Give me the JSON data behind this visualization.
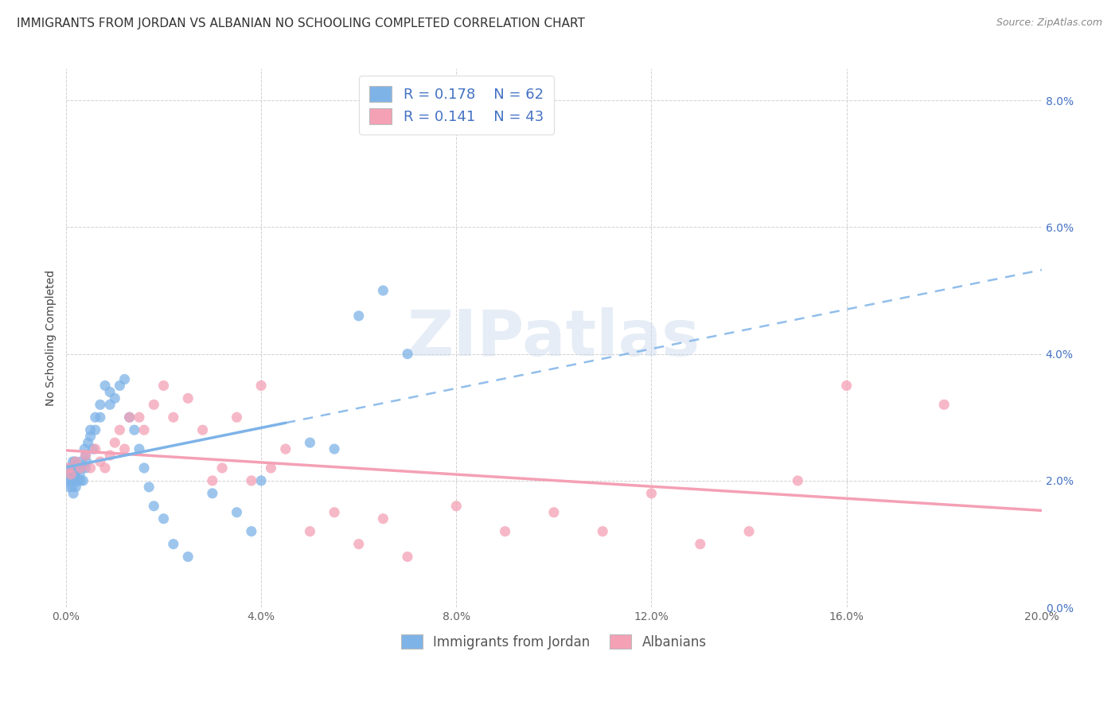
{
  "title": "IMMIGRANTS FROM JORDAN VS ALBANIAN NO SCHOOLING COMPLETED CORRELATION CHART",
  "source": "Source: ZipAtlas.com",
  "ylabel": "No Schooling Completed",
  "xlim": [
    0.0,
    0.2
  ],
  "ylim": [
    0.0,
    0.085
  ],
  "xtick_vals": [
    0.0,
    0.04,
    0.08,
    0.12,
    0.16,
    0.2
  ],
  "xtick_labels": [
    "0.0%",
    "4.0%",
    "8.0%",
    "12.0%",
    "16.0%",
    "20.0%"
  ],
  "ytick_vals": [
    0.0,
    0.02,
    0.04,
    0.06,
    0.08
  ],
  "ytick_labels_right": [
    "0.0%",
    "2.0%",
    "4.0%",
    "6.0%",
    "8.0%"
  ],
  "jordan_color": "#7EB3E8",
  "albanian_color": "#F4A0B5",
  "jordan_R": 0.178,
  "jordan_N": 62,
  "albanian_R": 0.141,
  "albanian_N": 43,
  "jordan_scatter_x": [
    0.0003,
    0.0005,
    0.0007,
    0.0008,
    0.0009,
    0.001,
    0.001,
    0.0012,
    0.0013,
    0.0014,
    0.0015,
    0.0015,
    0.0016,
    0.0017,
    0.0018,
    0.002,
    0.002,
    0.0022,
    0.0023,
    0.0025,
    0.0026,
    0.0028,
    0.003,
    0.003,
    0.0032,
    0.0035,
    0.0038,
    0.004,
    0.004,
    0.0042,
    0.0045,
    0.005,
    0.005,
    0.0055,
    0.006,
    0.006,
    0.007,
    0.007,
    0.008,
    0.009,
    0.009,
    0.01,
    0.011,
    0.012,
    0.013,
    0.014,
    0.015,
    0.016,
    0.017,
    0.018,
    0.02,
    0.022,
    0.025,
    0.03,
    0.035,
    0.038,
    0.04,
    0.05,
    0.055,
    0.06,
    0.065,
    0.07
  ],
  "jordan_scatter_y": [
    0.021,
    0.02,
    0.019,
    0.022,
    0.021,
    0.02,
    0.022,
    0.021,
    0.019,
    0.023,
    0.018,
    0.02,
    0.022,
    0.021,
    0.023,
    0.019,
    0.021,
    0.02,
    0.022,
    0.02,
    0.022,
    0.021,
    0.02,
    0.023,
    0.022,
    0.02,
    0.025,
    0.022,
    0.024,
    0.023,
    0.026,
    0.027,
    0.028,
    0.025,
    0.03,
    0.028,
    0.03,
    0.032,
    0.035,
    0.032,
    0.034,
    0.033,
    0.035,
    0.036,
    0.03,
    0.028,
    0.025,
    0.022,
    0.019,
    0.016,
    0.014,
    0.01,
    0.008,
    0.018,
    0.015,
    0.012,
    0.02,
    0.026,
    0.025,
    0.046,
    0.05,
    0.04
  ],
  "albanian_scatter_x": [
    0.0005,
    0.001,
    0.002,
    0.003,
    0.004,
    0.005,
    0.006,
    0.007,
    0.008,
    0.009,
    0.01,
    0.011,
    0.012,
    0.013,
    0.015,
    0.016,
    0.018,
    0.02,
    0.022,
    0.025,
    0.028,
    0.03,
    0.032,
    0.035,
    0.038,
    0.04,
    0.042,
    0.045,
    0.05,
    0.055,
    0.06,
    0.065,
    0.07,
    0.08,
    0.09,
    0.1,
    0.11,
    0.12,
    0.13,
    0.14,
    0.15,
    0.16,
    0.18
  ],
  "albanian_scatter_y": [
    0.022,
    0.021,
    0.023,
    0.022,
    0.024,
    0.022,
    0.025,
    0.023,
    0.022,
    0.024,
    0.026,
    0.028,
    0.025,
    0.03,
    0.03,
    0.028,
    0.032,
    0.035,
    0.03,
    0.033,
    0.028,
    0.02,
    0.022,
    0.03,
    0.02,
    0.035,
    0.022,
    0.025,
    0.012,
    0.015,
    0.01,
    0.014,
    0.008,
    0.016,
    0.012,
    0.015,
    0.012,
    0.018,
    0.01,
    0.012,
    0.02,
    0.035,
    0.032
  ],
  "background_color": "#FFFFFF",
  "grid_color": "#CCCCCC",
  "title_fontsize": 11,
  "axis_label_fontsize": 10,
  "tick_fontsize": 10,
  "legend_color": "#4472C4",
  "watermark_text": "ZIPatlas",
  "watermark_color": "#C8D8EC",
  "watermark_alpha": 0.45
}
